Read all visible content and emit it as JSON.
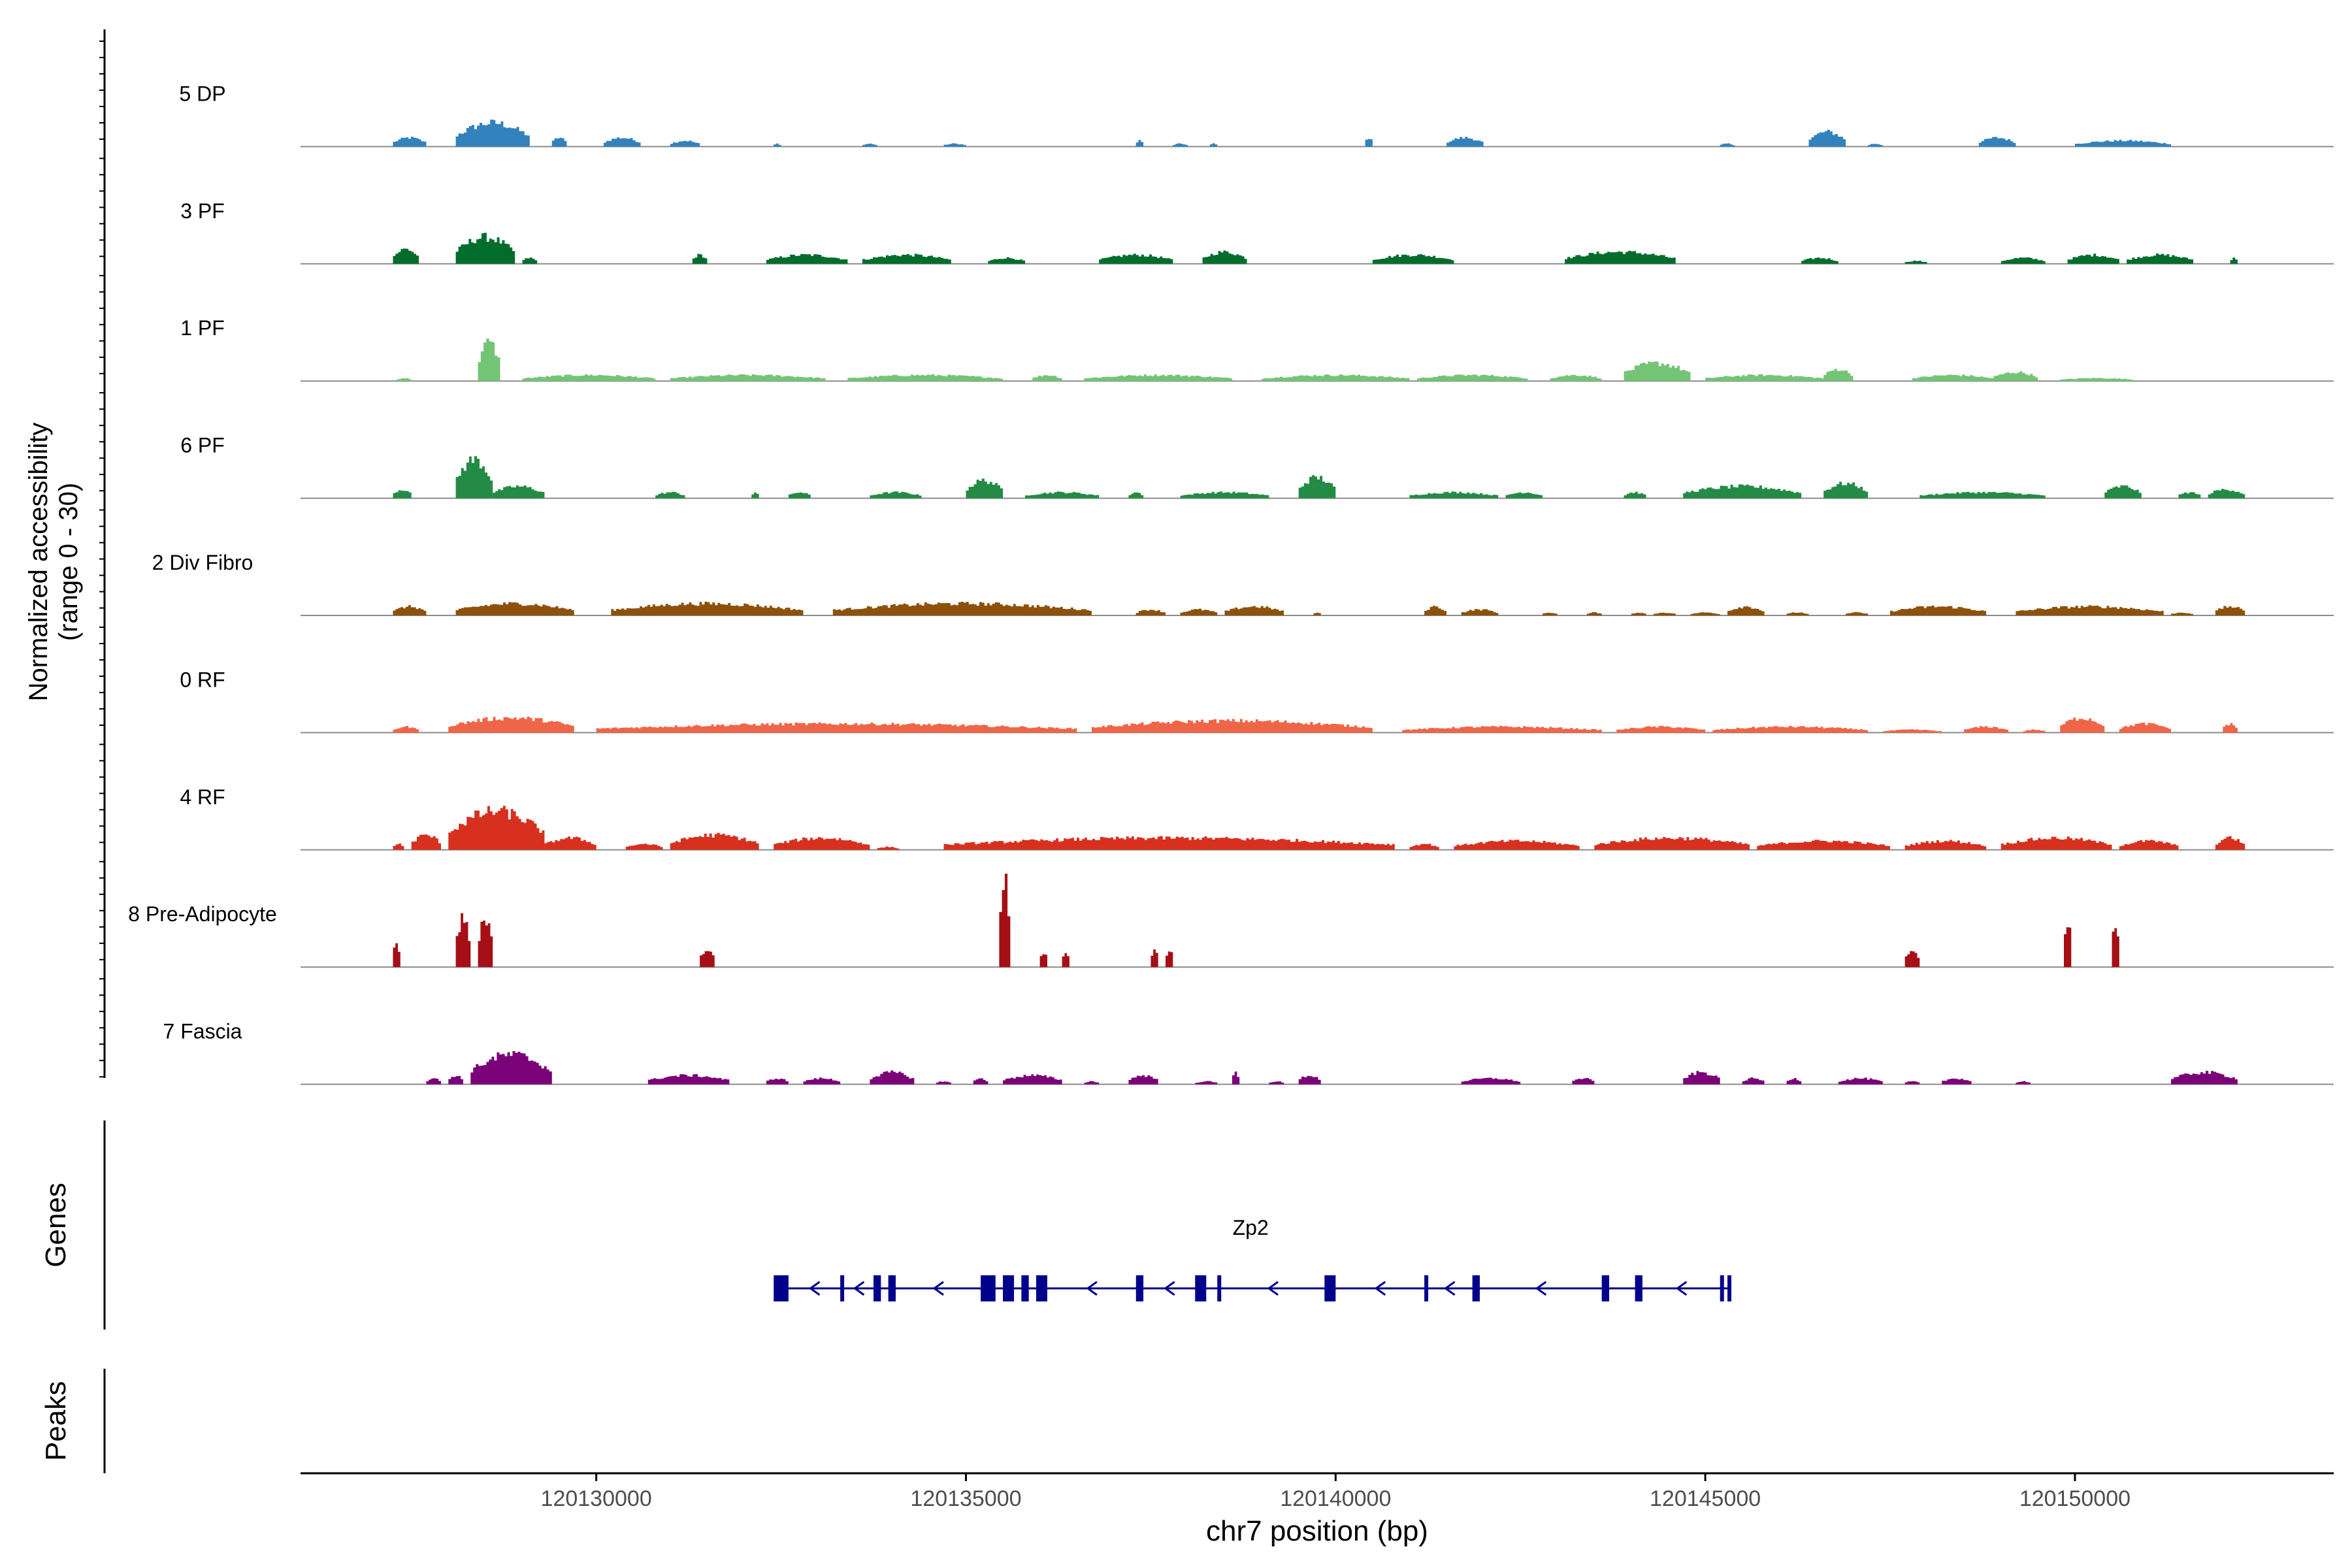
{
  "chart_data": {
    "type": "area",
    "title": "",
    "chromosome": "chr7",
    "xlabel": "chr7 position (bp)",
    "ylabel_line1": "Normalized accessibility",
    "ylabel_line2": "(range 0 - 30)",
    "y_range": [
      0,
      30
    ],
    "xlim": [
      120126000,
      120153500
    ],
    "xticks": [
      120130000,
      120135000,
      120140000,
      120145000,
      120150000
    ],
    "xtick_labels": [
      "120130000",
      "120135000",
      "120140000",
      "120145000",
      "120150000"
    ],
    "genes_label": "Genes",
    "peaks_label": "Peaks",
    "tracks": [
      {
        "name": "5 DP",
        "color": "#3182bd",
        "regions": [
          [
            120127250,
            120127700,
            3
          ],
          [
            120128100,
            120129100,
            8
          ],
          [
            120129400,
            120129600,
            3
          ],
          [
            120130100,
            120130600,
            3
          ],
          [
            120131000,
            120131400,
            2
          ],
          [
            120132400,
            120132500,
            1
          ],
          [
            120133600,
            120133800,
            1
          ],
          [
            120134700,
            120135000,
            1
          ],
          [
            120137300,
            120137400,
            2
          ],
          [
            120137800,
            120138000,
            1
          ],
          [
            120138300,
            120138400,
            1
          ],
          [
            120140400,
            120140500,
            3
          ],
          [
            120141500,
            120142000,
            3
          ],
          [
            120145200,
            120145400,
            1
          ],
          [
            120146400,
            120146900,
            5
          ],
          [
            120147200,
            120147400,
            1
          ],
          [
            120148700,
            120149200,
            3
          ],
          [
            120150000,
            120151300,
            2
          ]
        ]
      },
      {
        "name": "3 PF",
        "color": "#006d2c",
        "regions": [
          [
            120127250,
            120127600,
            5
          ],
          [
            120128100,
            120128900,
            9
          ],
          [
            120129000,
            120129200,
            2
          ],
          [
            120131300,
            120131500,
            3
          ],
          [
            120132300,
            120133400,
            3
          ],
          [
            120133600,
            120134800,
            3
          ],
          [
            120135300,
            120135800,
            2
          ],
          [
            120136800,
            120137800,
            3
          ],
          [
            120138200,
            120138800,
            4
          ],
          [
            120140500,
            120141600,
            3
          ],
          [
            120143100,
            120144600,
            4
          ],
          [
            120146300,
            120146800,
            2
          ],
          [
            120147700,
            120148000,
            1
          ],
          [
            120149000,
            120149600,
            2
          ],
          [
            120149900,
            120150600,
            3
          ],
          [
            120150700,
            120151600,
            3
          ],
          [
            120152100,
            120152200,
            2
          ]
        ]
      },
      {
        "name": "1 PF",
        "color": "#74c476",
        "regions": [
          [
            120127300,
            120127500,
            1
          ],
          [
            120128400,
            120128700,
            13
          ],
          [
            120129000,
            120130800,
            2
          ],
          [
            120131000,
            120133100,
            2
          ],
          [
            120133400,
            120135500,
            2
          ],
          [
            120135900,
            120136300,
            2
          ],
          [
            120136600,
            120138600,
            2
          ],
          [
            120139000,
            120141000,
            2
          ],
          [
            120141100,
            120142600,
            2
          ],
          [
            120142900,
            120143600,
            2
          ],
          [
            120143900,
            120144800,
            6
          ],
          [
            120145000,
            120146600,
            2
          ],
          [
            120146600,
            120147000,
            4
          ],
          [
            120147800,
            120148900,
            2
          ],
          [
            120148900,
            120149500,
            3
          ],
          [
            120149800,
            120150800,
            1
          ]
        ]
      },
      {
        "name": "6 PF",
        "color": "#238b45",
        "regions": [
          [
            120127250,
            120127500,
            3
          ],
          [
            120128100,
            120128600,
            13
          ],
          [
            120128600,
            120129300,
            4
          ],
          [
            120130800,
            120131200,
            2
          ],
          [
            120132100,
            120132200,
            2
          ],
          [
            120132600,
            120132900,
            2
          ],
          [
            120133700,
            120134400,
            2
          ],
          [
            120135000,
            120135500,
            6
          ],
          [
            120135800,
            120136800,
            2
          ],
          [
            120137200,
            120137400,
            2
          ],
          [
            120137900,
            120139100,
            2
          ],
          [
            120139500,
            120140000,
            7
          ],
          [
            120141000,
            120142200,
            2
          ],
          [
            120142300,
            120142800,
            2
          ],
          [
            120143900,
            120144200,
            2
          ],
          [
            120144700,
            120146300,
            4
          ],
          [
            120146600,
            120147200,
            5
          ],
          [
            120147900,
            120149600,
            2
          ],
          [
            120150400,
            120150900,
            4
          ],
          [
            120151400,
            120151700,
            2
          ],
          [
            120151800,
            120152300,
            3
          ]
        ]
      },
      {
        "name": "2 Div Fibro",
        "color": "#8c510a",
        "regions": [
          [
            120127250,
            120127700,
            3
          ],
          [
            120128100,
            120129700,
            4
          ],
          [
            120130200,
            120132800,
            4
          ],
          [
            120133200,
            120136700,
            4
          ],
          [
            120137300,
            120137700,
            2
          ],
          [
            120137900,
            120138400,
            2
          ],
          [
            120138500,
            120139300,
            3
          ],
          [
            120139700,
            120139800,
            1
          ],
          [
            120141200,
            120141500,
            3
          ],
          [
            120141700,
            120142200,
            2
          ],
          [
            120142800,
            120143000,
            1
          ],
          [
            120143400,
            120143600,
            1
          ],
          [
            120144000,
            120144200,
            1
          ],
          [
            120144300,
            120144600,
            1
          ],
          [
            120144800,
            120145200,
            1
          ],
          [
            120145300,
            120145800,
            3
          ],
          [
            120146100,
            120146400,
            1
          ],
          [
            120146900,
            120147200,
            1
          ],
          [
            120147500,
            120148800,
            3
          ],
          [
            120149200,
            120151200,
            3
          ],
          [
            120151300,
            120151600,
            1
          ],
          [
            120151900,
            120152300,
            3
          ]
        ]
      },
      {
        "name": "0 RF",
        "color": "#ef6548",
        "regions": [
          [
            120127250,
            120127600,
            2
          ],
          [
            120128000,
            120129700,
            5
          ],
          [
            120130000,
            120136500,
            3
          ],
          [
            120136700,
            120140500,
            4
          ],
          [
            120140900,
            120143600,
            2
          ],
          [
            120143800,
            120145000,
            2
          ],
          [
            120145100,
            120147200,
            2
          ],
          [
            120147400,
            120148200,
            1
          ],
          [
            120148500,
            120149100,
            2
          ],
          [
            120149300,
            120149600,
            1
          ],
          [
            120149800,
            120150400,
            5
          ],
          [
            120150600,
            120151300,
            3
          ],
          [
            120152000,
            120152200,
            3
          ]
        ]
      },
      {
        "name": "4 RF",
        "color": "#d7301f",
        "regions": [
          [
            120127250,
            120127400,
            2
          ],
          [
            120127500,
            120127900,
            5
          ],
          [
            120128000,
            120129300,
            13
          ],
          [
            120129300,
            120130000,
            4
          ],
          [
            120130400,
            120130900,
            2
          ],
          [
            120131000,
            120132200,
            5
          ],
          [
            120132400,
            120133700,
            4
          ],
          [
            120133800,
            120134100,
            1
          ],
          [
            120134700,
            120140800,
            4
          ],
          [
            120141000,
            120141400,
            2
          ],
          [
            120141600,
            120143300,
            3
          ],
          [
            120143500,
            120145600,
            4
          ],
          [
            120145700,
            120147500,
            3
          ],
          [
            120147700,
            120148800,
            3
          ],
          [
            120149000,
            120150500,
            4
          ],
          [
            120150600,
            120151400,
            3
          ],
          [
            120151900,
            120152300,
            4
          ]
        ]
      },
      {
        "name": "8 Pre-Adipocyte",
        "color": "#a50f15",
        "regions": [
          [
            120127250,
            120127350,
            8
          ],
          [
            120128100,
            120128300,
            16
          ],
          [
            120128400,
            120128600,
            17
          ],
          [
            120131400,
            120131600,
            6
          ],
          [
            120135450,
            120135600,
            30
          ],
          [
            120136000,
            120136100,
            5
          ],
          [
            120136300,
            120136400,
            5
          ],
          [
            120137500,
            120137600,
            6
          ],
          [
            120137700,
            120137800,
            6
          ],
          [
            120147700,
            120147900,
            6
          ],
          [
            120149850,
            120149950,
            16
          ],
          [
            120150500,
            120150600,
            16
          ]
        ]
      },
      {
        "name": "7 Fascia",
        "color": "#7a0177",
        "regions": [
          [
            120127700,
            120127900,
            2
          ],
          [
            120128000,
            120128200,
            3
          ],
          [
            120128300,
            120129400,
            10
          ],
          [
            120130700,
            120131800,
            3
          ],
          [
            120132300,
            120132600,
            2
          ],
          [
            120132800,
            120133300,
            2
          ],
          [
            120133700,
            120134300,
            4
          ],
          [
            120134600,
            120134800,
            1
          ],
          [
            120135100,
            120135300,
            2
          ],
          [
            120135500,
            120136300,
            3
          ],
          [
            120136600,
            120136800,
            1
          ],
          [
            120137200,
            120137600,
            3
          ],
          [
            120138100,
            120138400,
            1
          ],
          [
            120138600,
            120138700,
            4
          ],
          [
            120139100,
            120139300,
            1
          ],
          [
            120139500,
            120139800,
            3
          ],
          [
            120141700,
            120142500,
            2
          ],
          [
            120143200,
            120143500,
            2
          ],
          [
            120144700,
            120145200,
            4
          ],
          [
            120145500,
            120145800,
            2
          ],
          [
            120146100,
            120146300,
            2
          ],
          [
            120146800,
            120147400,
            2
          ],
          [
            120147700,
            120147900,
            1
          ],
          [
            120148200,
            120148600,
            2
          ],
          [
            120149200,
            120149400,
            1
          ],
          [
            120151300,
            120152200,
            4
          ]
        ]
      }
    ],
    "gene": {
      "name": "Zp2",
      "strand": "-",
      "start": 120132400,
      "end": 120145300,
      "exons": [
        [
          120132400,
          120132600
        ],
        [
          120133300,
          120133350
        ],
        [
          120133750,
          120133850
        ],
        [
          120133950,
          120134050
        ],
        [
          120135200,
          120135400
        ],
        [
          120135500,
          120135650
        ],
        [
          120135750,
          120135850
        ],
        [
          120135950,
          120136100
        ],
        [
          120137300,
          120137400
        ],
        [
          120138100,
          120138250
        ],
        [
          120138400,
          120138450
        ],
        [
          120139850,
          120140000
        ],
        [
          120141200,
          120141230
        ],
        [
          120141850,
          120141950
        ],
        [
          120143600,
          120143700
        ],
        [
          120144050,
          120144150
        ],
        [
          120145200,
          120145250
        ],
        [
          120145300,
          120145350
        ]
      ]
    }
  }
}
